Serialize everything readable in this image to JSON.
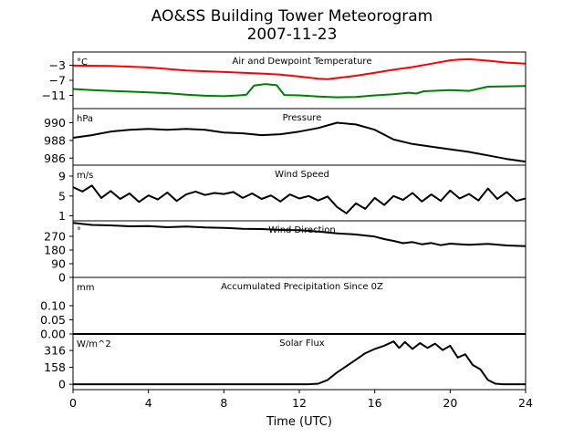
{
  "title_line1": "AO&SS Building Tower Meteorogram",
  "title_line2": "2007-11-23",
  "chart_data": [
    {
      "type": "line",
      "title": "Air and Dewpoint Temperature",
      "unit": "°C",
      "ylim": [
        -14.5,
        0.5
      ],
      "yticks": [
        -3,
        -7,
        -11
      ],
      "ytick_labels": [
        "−3",
        "−7",
        "−11"
      ],
      "series": [
        {
          "color": "#ff0000",
          "x": [
            0,
            2,
            4,
            6,
            8,
            10,
            11,
            12,
            13,
            13.5,
            14,
            15,
            16,
            17,
            18,
            19,
            20,
            20.5,
            21,
            22,
            23,
            24
          ],
          "y": [
            -3.1,
            -3.2,
            -3.6,
            -4.4,
            -4.8,
            -5.2,
            -5.5,
            -6.0,
            -6.6,
            -6.7,
            -6.4,
            -5.8,
            -5.0,
            -4.2,
            -3.5,
            -2.6,
            -1.7,
            -1.5,
            -1.4,
            -1.8,
            -2.3,
            -2.6
          ]
        },
        {
          "color": "#008000",
          "x": [
            0,
            1,
            2,
            3,
            4,
            5,
            6,
            7,
            8,
            8.8,
            9.2,
            9.6,
            10.2,
            10.8,
            11.2,
            12,
            13,
            14,
            15,
            16,
            17,
            17.8,
            18.2,
            18.6,
            19,
            20,
            21,
            22,
            23,
            24
          ],
          "y": [
            -9.3,
            -9.6,
            -9.8,
            -10.0,
            -10.2,
            -10.4,
            -10.8,
            -11.1,
            -11.2,
            -11.0,
            -10.8,
            -8.4,
            -8.0,
            -8.3,
            -10.9,
            -11.0,
            -11.3,
            -11.5,
            -11.4,
            -11.0,
            -10.7,
            -10.3,
            -10.5,
            -9.9,
            -9.8,
            -9.6,
            -9.8,
            -8.7,
            -8.6,
            -8.5
          ]
        }
      ]
    },
    {
      "type": "line",
      "title": "Pressure",
      "unit": "hPa",
      "ylim": [
        985.2,
        991.6
      ],
      "yticks": [
        990,
        988,
        986
      ],
      "ytick_labels": [
        "990",
        "988",
        "986"
      ],
      "series": [
        {
          "color": "#000000",
          "x": [
            0,
            1,
            2,
            3,
            4,
            5,
            6,
            7,
            8,
            9,
            10,
            11,
            12,
            13,
            14,
            15,
            16,
            17,
            18,
            19,
            20,
            21,
            22,
            23,
            24
          ],
          "y": [
            988.3,
            988.6,
            989.0,
            989.2,
            989.3,
            989.2,
            989.3,
            989.2,
            988.9,
            988.8,
            988.6,
            988.7,
            989.0,
            989.4,
            990.0,
            989.8,
            989.2,
            988.1,
            987.6,
            987.3,
            987.0,
            986.7,
            986.3,
            985.9,
            985.6
          ]
        }
      ]
    },
    {
      "type": "line",
      "title": "Wind Speed",
      "unit": "m/s",
      "ylim": [
        0,
        11.2
      ],
      "yticks": [
        9,
        5,
        1
      ],
      "ytick_labels": [
        "9",
        "5",
        "1"
      ],
      "series": [
        {
          "color": "#000000",
          "x": [
            0,
            0.5,
            1,
            1.5,
            2,
            2.5,
            3,
            3.5,
            4,
            4.5,
            5,
            5.5,
            6,
            6.5,
            7,
            7.5,
            8,
            8.5,
            9,
            9.5,
            10,
            10.5,
            11,
            11.5,
            12,
            12.5,
            13,
            13.5,
            14,
            14.5,
            15,
            15.5,
            16,
            16.5,
            17,
            17.5,
            18,
            18.5,
            19,
            19.5,
            20,
            20.5,
            21,
            21.5,
            22,
            22.5,
            23,
            23.5,
            24
          ],
          "y": [
            6.8,
            5.9,
            7.1,
            4.6,
            6.0,
            4.4,
            5.5,
            3.8,
            5.1,
            4.3,
            5.7,
            4.0,
            5.3,
            5.9,
            5.2,
            5.6,
            5.4,
            5.8,
            4.6,
            5.5,
            4.4,
            5.1,
            3.9,
            5.3,
            4.5,
            5.0,
            4.1,
            4.9,
            2.8,
            1.5,
            3.5,
            2.4,
            4.6,
            3.2,
            5.0,
            4.2,
            5.6,
            3.9,
            5.3,
            4.0,
            6.1,
            4.5,
            5.4,
            4.1,
            6.5,
            4.4,
            5.8,
            4.0,
            4.5
          ]
        }
      ]
    },
    {
      "type": "line",
      "title": "Wind Direction",
      "unit": "°",
      "ylim": [
        0,
        372
      ],
      "yticks": [
        270,
        180,
        90,
        0
      ],
      "ytick_labels": [
        "270",
        "180",
        "90",
        "0"
      ],
      "series": [
        {
          "color": "#000000",
          "x": [
            0,
            1,
            2,
            3,
            4,
            5,
            6,
            7,
            8,
            9,
            10,
            11,
            12,
            13,
            14,
            15,
            16,
            16.5,
            17,
            17.5,
            18,
            18.5,
            19,
            19.5,
            20,
            21,
            22,
            23,
            24
          ],
          "y": [
            358,
            345,
            342,
            336,
            338,
            330,
            334,
            328,
            326,
            320,
            318,
            312,
            310,
            302,
            290,
            282,
            268,
            252,
            240,
            225,
            232,
            218,
            226,
            212,
            222,
            214,
            220,
            210,
            205
          ]
        }
      ]
    },
    {
      "type": "line",
      "title": "Accumulated Precipitation Since 0Z",
      "unit": "mm",
      "ylim": [
        0,
        0.2
      ],
      "yticks": [
        0.1,
        0.05,
        0.0
      ],
      "ytick_labels": [
        "0.10",
        "0.05",
        "0.00"
      ],
      "series": [
        {
          "color": "#000000",
          "x": [
            0,
            24
          ],
          "y": [
            0,
            0
          ]
        }
      ]
    },
    {
      "type": "line",
      "title": "Solar Flux",
      "unit": "W/m^2",
      "ylim": [
        -50,
        470
      ],
      "yticks": [
        316,
        158,
        0
      ],
      "ytick_labels": [
        "316",
        "158",
        "0"
      ],
      "series": [
        {
          "color": "#000000",
          "x": [
            0,
            12.5,
            13,
            13.5,
            14,
            14.5,
            15,
            15.5,
            16,
            16.5,
            17,
            17.3,
            17.6,
            18,
            18.4,
            18.8,
            19.2,
            19.6,
            20,
            20.4,
            20.8,
            21.2,
            21.6,
            22,
            22.4,
            22.8,
            24
          ],
          "y": [
            0,
            0,
            5,
            40,
            110,
            170,
            230,
            290,
            330,
            360,
            400,
            340,
            395,
            330,
            385,
            340,
            380,
            320,
            360,
            250,
            280,
            180,
            140,
            40,
            5,
            0,
            0
          ]
        }
      ]
    }
  ],
  "x_axis": {
    "label": "Time (UTC)",
    "xlim": [
      0,
      24
    ],
    "ticks": [
      0,
      4,
      8,
      12,
      16,
      20,
      24
    ],
    "tick_labels": [
      "0",
      "4",
      "8",
      "12",
      "16",
      "20",
      "24"
    ]
  }
}
